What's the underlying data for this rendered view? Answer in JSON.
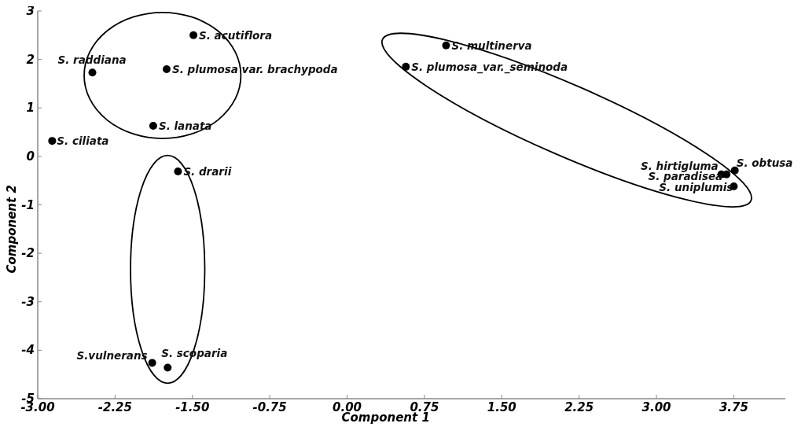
{
  "chart_data": {
    "type": "scatter",
    "xlabel": "Component 1",
    "ylabel": "Component 2",
    "xlim": [
      -3,
      4.25
    ],
    "ylim": [
      -5,
      3
    ],
    "xticks": [
      {
        "value": -3,
        "label": "-3.00"
      },
      {
        "value": -2.25,
        "label": "-2.25"
      },
      {
        "value": -1.5,
        "label": "-1.50"
      },
      {
        "value": -0.75,
        "label": "-0.75"
      },
      {
        "value": 0,
        "label": "0.00"
      },
      {
        "value": 0.75,
        "label": "0.75"
      },
      {
        "value": 1.5,
        "label": "1.50"
      },
      {
        "value": 2.25,
        "label": "2.25"
      },
      {
        "value": 3,
        "label": "3.00"
      },
      {
        "value": 3.75,
        "label": "3.75"
      }
    ],
    "yticks": [
      -5,
      -4,
      -3,
      -2,
      -1,
      0,
      1,
      2,
      3
    ],
    "grid": false,
    "legend": false,
    "marker": "circle",
    "series": [
      {
        "name": "S. acutiflora",
        "color": "#000000",
        "x": [
          -1.49
        ],
        "values": [
          2.5
        ]
      },
      {
        "name": "S. raddiana",
        "color": "#000000",
        "x": [
          -2.47
        ],
        "values": [
          1.73
        ]
      },
      {
        "name": "S. plumosa var. brachypoda",
        "color": "#000000",
        "x": [
          -1.75
        ],
        "values": [
          1.8
        ]
      },
      {
        "name": "S. lanata",
        "color": "#000000",
        "x": [
          -1.88
        ],
        "values": [
          0.63
        ]
      },
      {
        "name": "S. ciliata",
        "color": "#000000",
        "x": [
          -2.86
        ],
        "values": [
          0.32
        ]
      },
      {
        "name": "S. drarii",
        "color": "#000000",
        "x": [
          -1.64
        ],
        "values": [
          -0.31
        ]
      },
      {
        "name": "S.vulnerans",
        "color": "#000000",
        "x": [
          -1.89
        ],
        "values": [
          -4.26
        ]
      },
      {
        "name": "S. scoparia",
        "color": "#000000",
        "x": [
          -1.74
        ],
        "values": [
          -4.36
        ]
      },
      {
        "name": "S. multinerva",
        "color": "#000000",
        "x": [
          0.96
        ],
        "values": [
          2.29
        ]
      },
      {
        "name": "S. plumosa_var._seminoda",
        "color": "#000000",
        "x": [
          0.57
        ],
        "values": [
          1.85
        ]
      },
      {
        "name": "S. hirtigluma",
        "color": "#000000",
        "x": [
          3.63
        ],
        "values": [
          -0.37
        ]
      },
      {
        "name": "S. paradisea",
        "color": "#000000",
        "x": [
          3.68
        ],
        "values": [
          -0.37
        ]
      },
      {
        "name": "S. obtusa",
        "color": "#000000",
        "x": [
          3.76
        ],
        "values": [
          -0.29
        ]
      },
      {
        "name": "S. uniplumis",
        "color": "#000000",
        "x": [
          3.75
        ],
        "values": [
          -0.62
        ]
      }
    ]
  }
}
